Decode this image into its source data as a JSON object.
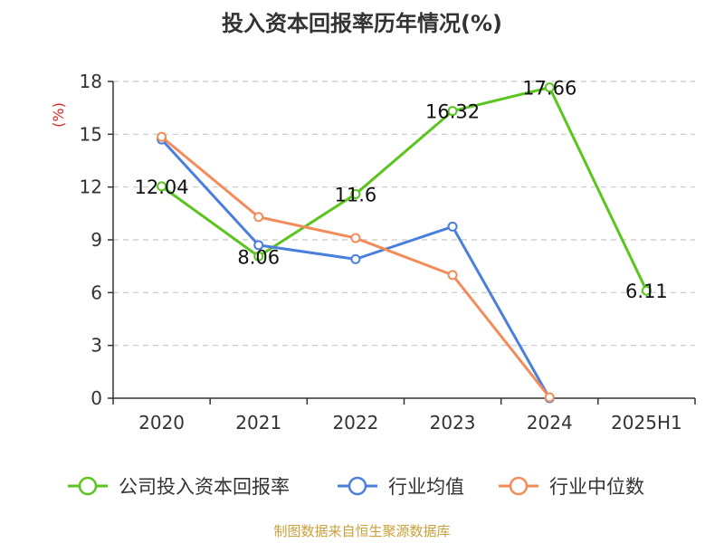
{
  "title": "投入资本回报率历年情况(%)",
  "source": "制图数据来自恒生聚源数据库",
  "chart_data": {
    "type": "line",
    "title": "投入资本回报率历年情况(%)",
    "ylabel": "(%)",
    "categories": [
      "2020",
      "2021",
      "2022",
      "2023",
      "2024",
      "2025H1"
    ],
    "ylim": [
      0,
      18
    ],
    "yticks": [
      0,
      3,
      6,
      9,
      12,
      15,
      18
    ],
    "grid": true,
    "legend_position": "bottom",
    "series": [
      {
        "name": "公司投入资本回报率",
        "color": "#5cc41f",
        "values": [
          12.04,
          8.06,
          11.6,
          16.32,
          17.66,
          6.11
        ],
        "labels": [
          "12.04",
          "8.06",
          "11.6",
          "16.32",
          "17.66",
          "6.11"
        ]
      },
      {
        "name": "行业均值",
        "color": "#4a7fdc",
        "values": [
          14.7,
          8.7,
          7.9,
          9.75,
          0,
          null
        ]
      },
      {
        "name": "行业中位数",
        "color": "#f28c5a",
        "values": [
          14.85,
          10.3,
          9.1,
          7.0,
          0.05,
          null
        ]
      }
    ]
  }
}
